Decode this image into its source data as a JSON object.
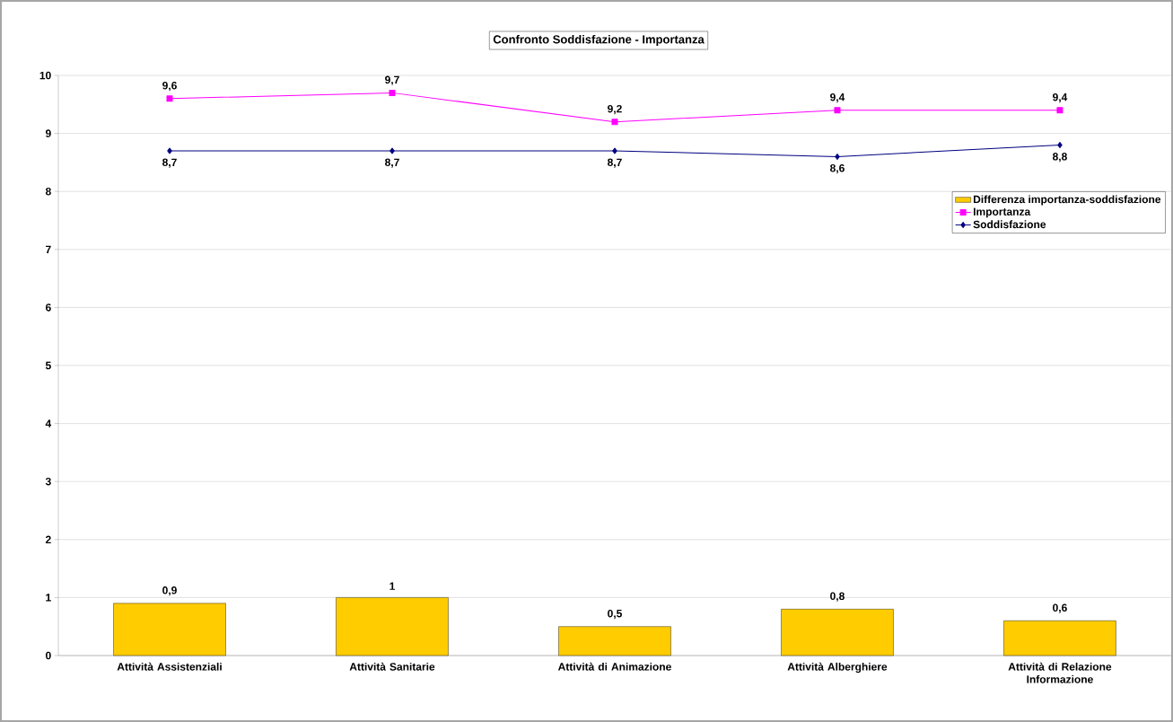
{
  "chart_data": {
    "type": "bar",
    "title": "Confronto Soddisfazione - Importanza",
    "categories": [
      "Attività Assistenziali",
      "Attività Sanitarie",
      "Attività di Animazione",
      "Attività Alberghiere",
      "Attività di Relazione Informazione"
    ],
    "series": [
      {
        "name": "Differenza importanza-soddisfazione",
        "color": "#ffcc00",
        "values": [
          0.9,
          1,
          0.5,
          0.8,
          0.6
        ],
        "value_labels": [
          "0,9",
          "1",
          "0,5",
          "0,8",
          "0,6"
        ]
      },
      {
        "name": "Importanza",
        "type": "line",
        "color": "#ff00ff",
        "marker": "square",
        "values": [
          9.6,
          9.7,
          9.2,
          9.4,
          9.4
        ],
        "value_labels": [
          "9,6",
          "9,7",
          "9,2",
          "9,4",
          "9,4"
        ]
      },
      {
        "name": "Soddisfazione",
        "type": "line",
        "color": "#000080",
        "marker": "diamond",
        "values": [
          8.7,
          8.7,
          8.7,
          8.6,
          8.8
        ],
        "value_labels": [
          "8,7",
          "8,7",
          "8,7",
          "8,6",
          "8,8"
        ]
      }
    ],
    "ylim": [
      0,
      10
    ],
    "yticks": [
      0,
      1,
      2,
      3,
      4,
      5,
      6,
      7,
      8,
      9,
      10
    ],
    "grid": "y",
    "legend": "right"
  }
}
